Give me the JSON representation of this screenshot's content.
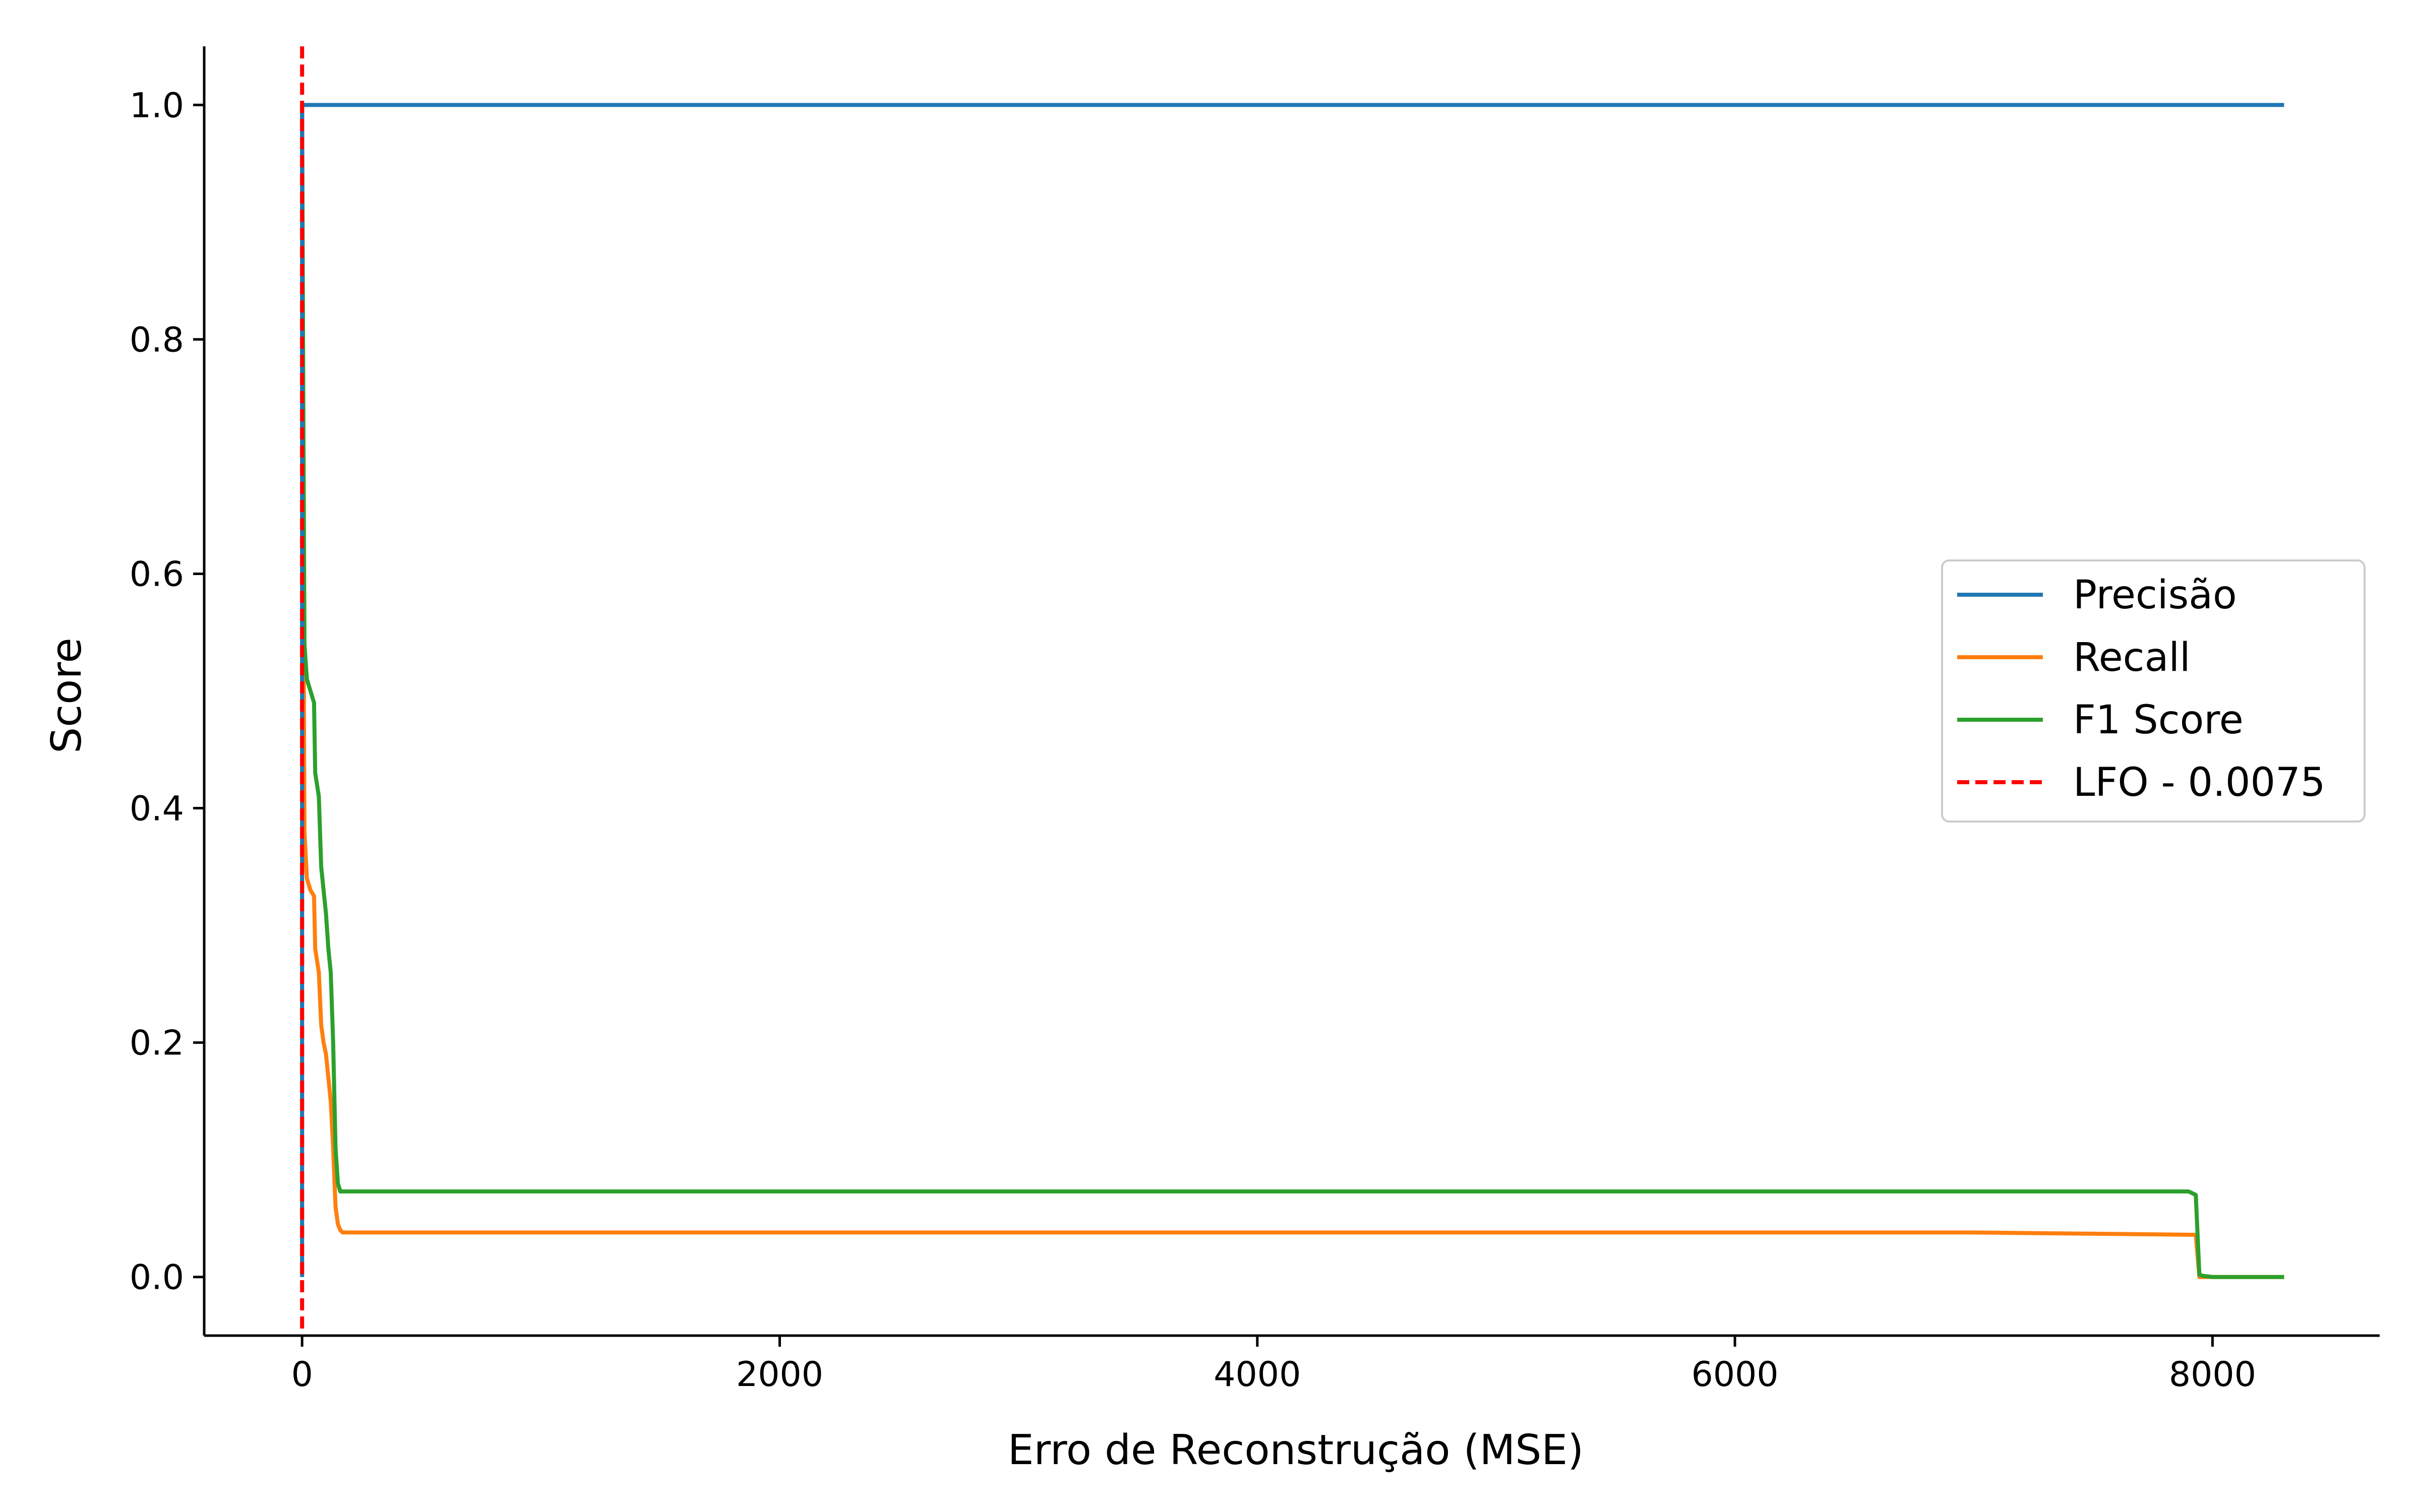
{
  "chart_data": {
    "type": "line",
    "title": "",
    "xlabel": "Erro de Reconstrução (MSE)",
    "ylabel": "Score",
    "xlim": [
      -410,
      8700
    ],
    "ylim": [
      -0.05,
      1.05
    ],
    "xticks": [
      0,
      2000,
      4000,
      6000,
      8000
    ],
    "xtick_labels": [
      "0",
      "2000",
      "4000",
      "6000",
      "8000"
    ],
    "yticks": [
      0.0,
      0.2,
      0.4,
      0.6,
      0.8,
      1.0
    ],
    "ytick_labels": [
      "0.0",
      "0.2",
      "0.4",
      "0.6",
      "0.8",
      "1.0"
    ],
    "grid": false,
    "legend_position": "center-right",
    "series": [
      {
        "name": "Precisão",
        "color": "#1f77b4",
        "style": "solid",
        "x": [
          0,
          0,
          8300
        ],
        "y": [
          0.0,
          1.0,
          1.0
        ]
      },
      {
        "name": "Recall",
        "color": "#ff7f0e",
        "style": "solid",
        "x": [
          0,
          5,
          10,
          20,
          35,
          50,
          55,
          70,
          80,
          90,
          100,
          110,
          120,
          130,
          140,
          150,
          160,
          170,
          200,
          1000,
          3000,
          5000,
          7000,
          7930,
          7945,
          7960,
          8000,
          8300
        ],
        "y": [
          1.0,
          0.6,
          0.38,
          0.34,
          0.33,
          0.325,
          0.28,
          0.26,
          0.215,
          0.2,
          0.19,
          0.17,
          0.15,
          0.11,
          0.06,
          0.045,
          0.04,
          0.038,
          0.038,
          0.038,
          0.038,
          0.038,
          0.038,
          0.036,
          0.0,
          0.0,
          0.0,
          0.0
        ]
      },
      {
        "name": "F1 Score",
        "color": "#2ca02c",
        "style": "solid",
        "x": [
          0,
          5,
          10,
          20,
          35,
          50,
          55,
          70,
          80,
          90,
          100,
          110,
          120,
          130,
          140,
          150,
          160,
          170,
          200,
          1000,
          3000,
          5000,
          7000,
          7900,
          7930,
          7945,
          7960,
          8000,
          8300
        ],
        "y": [
          1.0,
          0.75,
          0.54,
          0.51,
          0.5,
          0.49,
          0.43,
          0.41,
          0.35,
          0.33,
          0.31,
          0.28,
          0.26,
          0.2,
          0.11,
          0.08,
          0.073,
          0.073,
          0.073,
          0.073,
          0.073,
          0.073,
          0.073,
          0.073,
          0.07,
          0.002,
          0.001,
          0.0,
          0.0
        ]
      }
    ],
    "threshold_line": {
      "name": "LFO - 0.0075",
      "color": "#ff0000",
      "style": "dashed",
      "x": 0.0075
    }
  }
}
